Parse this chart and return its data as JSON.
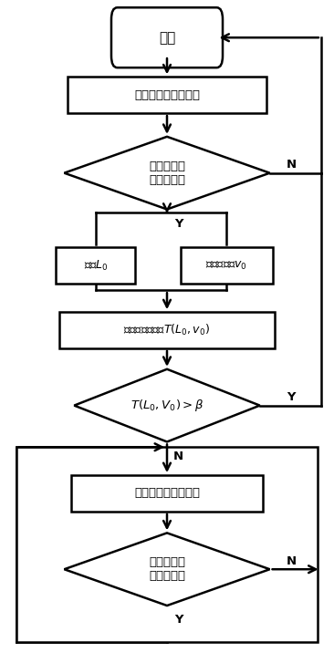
{
  "bg_color": "#ffffff",
  "line_color": "#000000",
  "start_text": "开始",
  "box1_text": "机动车右转绿灯信号",
  "diamond1_text": "是否有非机\n动车到达？",
  "box_pos_text": "位置$L_0$",
  "box_spd_text": "非机动车速$v_0$",
  "box2_text": "到达冲突区时间$T(L_0, v_0)$",
  "diamond2_text": "$T(L_0,V_0)>\\beta$",
  "box3_text": "机动车右转红灯信号",
  "diamond3_text": "是否有非机\n动车到达？",
  "label_N": "N",
  "label_Y": "Y",
  "figsize": [
    3.66,
    7.27
  ],
  "dpi": 100
}
